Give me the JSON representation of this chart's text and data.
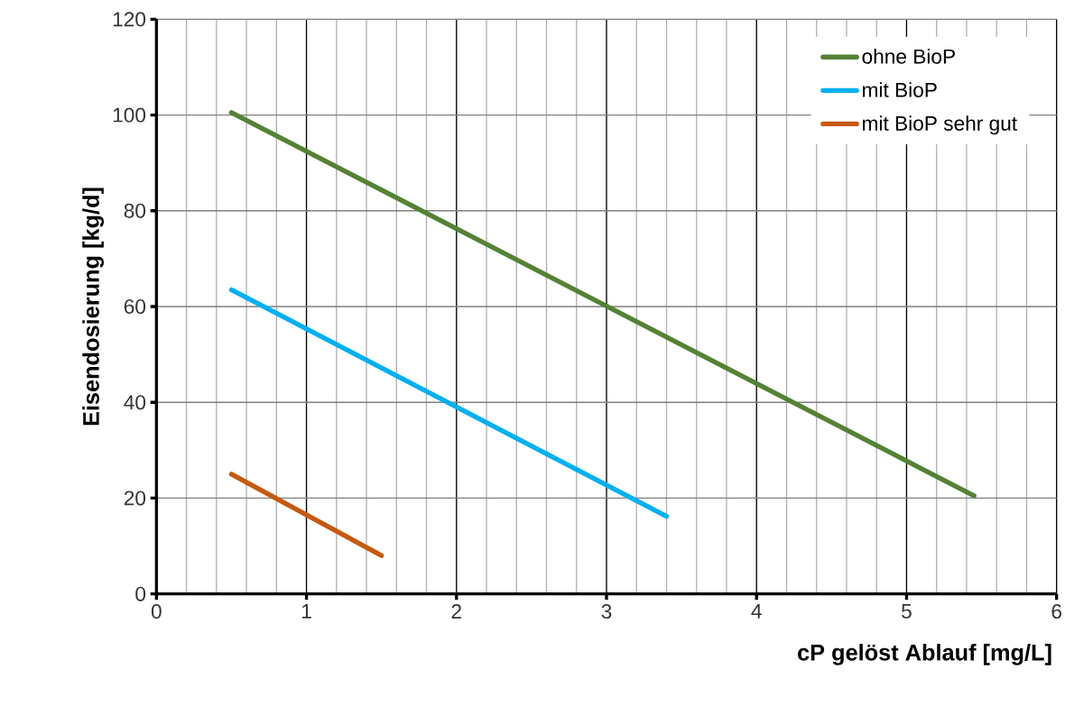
{
  "chart_data": {
    "type": "line",
    "xlabel": "cP gelöst Ablauf [mg/L]",
    "ylabel": "Eisendosierung [kg/d]",
    "series": [
      {
        "name": "ohne BioP",
        "color": "#548235",
        "x": [
          0.5,
          5.45
        ],
        "values": [
          100.5,
          20.5
        ]
      },
      {
        "name": "mit BioP",
        "color": "#00b0f0",
        "x": [
          0.5,
          3.4
        ],
        "values": [
          63.5,
          16.2
        ]
      },
      {
        "name": "mit BioP sehr gut",
        "color": "#c55a11",
        "x": [
          0.5,
          1.5
        ],
        "values": [
          25,
          8
        ]
      }
    ],
    "xlim": [
      0,
      6
    ],
    "ylim": [
      0,
      120
    ],
    "xticks": [
      0,
      1,
      2,
      3,
      4,
      5,
      6
    ],
    "yticks": [
      0,
      20,
      40,
      60,
      80,
      100,
      120
    ],
    "grid": true,
    "legend": "top right",
    "marker": "none",
    "line_style": "solid"
  }
}
